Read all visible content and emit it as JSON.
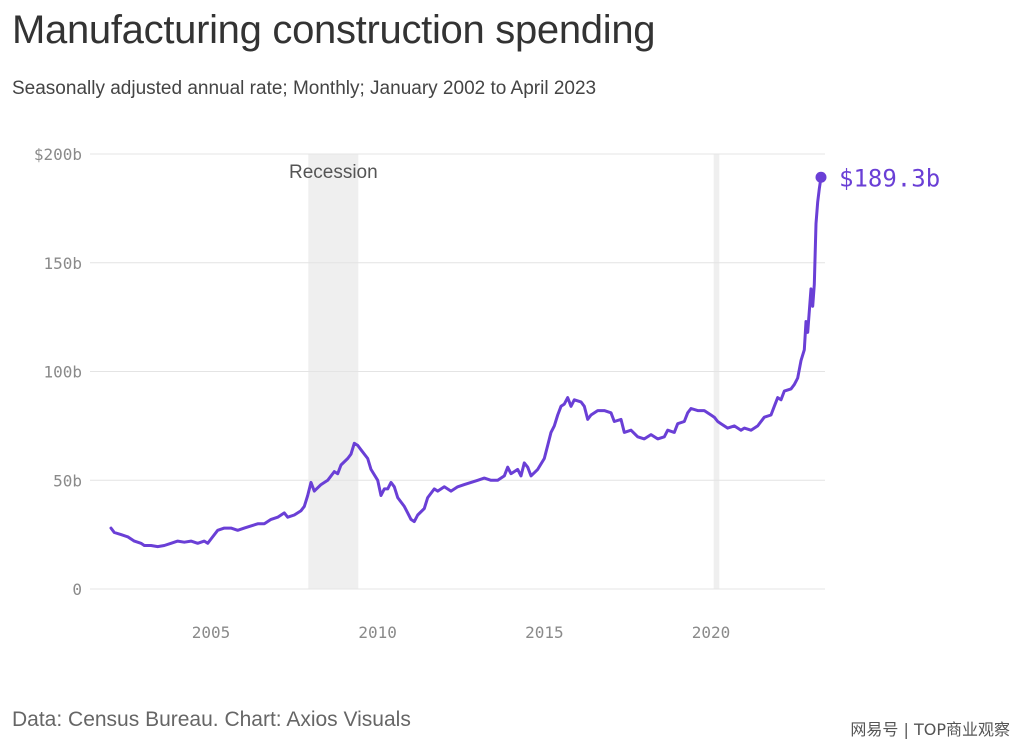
{
  "title": "Manufacturing construction spending",
  "subtitle": "Seasonally adjusted annual rate; Monthly; January 2002 to April 2023",
  "source": "Data: Census Bureau. Chart: Axios Visuals",
  "watermark": "网易号 | TOP商业观察",
  "colors": {
    "series": "#6a3fd6",
    "recession": "#efefef",
    "grid": "#e4e4e4"
  },
  "chart_data": {
    "type": "line",
    "title": "Manufacturing construction spending",
    "subtitle": "Seasonally adjusted annual rate; Monthly; January 2002 to April 2023",
    "xlabel": "",
    "ylabel": "",
    "xlim": [
      2002,
      2023.3
    ],
    "ylim": [
      0,
      200
    ],
    "x_ticks": [
      2005,
      2010,
      2015,
      2020
    ],
    "x_tick_labels": [
      "2005",
      "2010",
      "2015",
      "2020"
    ],
    "y_ticks": [
      0,
      50,
      100,
      150,
      200
    ],
    "y_tick_labels": [
      "0",
      "50b",
      "100b",
      "150b",
      "$200b"
    ],
    "grid": true,
    "recessions": [
      {
        "label": "Recession",
        "start": 2007.92,
        "end": 2009.42
      },
      {
        "label": "",
        "start": 2020.08,
        "end": 2020.25
      }
    ],
    "end_label": "$189.3b",
    "series": [
      {
        "values": [
          [
            2002.0,
            28
          ],
          [
            2002.1,
            26
          ],
          [
            2002.3,
            25
          ],
          [
            2002.5,
            24
          ],
          [
            2002.7,
            22
          ],
          [
            2002.9,
            21
          ],
          [
            2003.0,
            20
          ],
          [
            2003.2,
            20
          ],
          [
            2003.4,
            19.5
          ],
          [
            2003.6,
            20
          ],
          [
            2003.8,
            21
          ],
          [
            2004.0,
            22
          ],
          [
            2004.2,
            21.5
          ],
          [
            2004.4,
            22
          ],
          [
            2004.6,
            21
          ],
          [
            2004.8,
            22
          ],
          [
            2004.9,
            21
          ],
          [
            2005.0,
            23
          ],
          [
            2005.2,
            27
          ],
          [
            2005.4,
            28
          ],
          [
            2005.6,
            28
          ],
          [
            2005.8,
            27
          ],
          [
            2006.0,
            28
          ],
          [
            2006.2,
            29
          ],
          [
            2006.4,
            30
          ],
          [
            2006.6,
            30
          ],
          [
            2006.8,
            32
          ],
          [
            2007.0,
            33
          ],
          [
            2007.2,
            35
          ],
          [
            2007.3,
            33
          ],
          [
            2007.5,
            34
          ],
          [
            2007.7,
            36
          ],
          [
            2007.8,
            38
          ],
          [
            2007.9,
            43
          ],
          [
            2008.0,
            49
          ],
          [
            2008.1,
            45
          ],
          [
            2008.3,
            48
          ],
          [
            2008.5,
            50
          ],
          [
            2008.7,
            54
          ],
          [
            2008.8,
            53
          ],
          [
            2008.9,
            57
          ],
          [
            2009.1,
            60
          ],
          [
            2009.2,
            62
          ],
          [
            2009.3,
            67
          ],
          [
            2009.4,
            66
          ],
          [
            2009.5,
            64
          ],
          [
            2009.7,
            60
          ],
          [
            2009.8,
            55
          ],
          [
            2010.0,
            50
          ],
          [
            2010.1,
            43
          ],
          [
            2010.2,
            46
          ],
          [
            2010.3,
            46
          ],
          [
            2010.4,
            49
          ],
          [
            2010.5,
            47
          ],
          [
            2010.6,
            42
          ],
          [
            2010.8,
            38
          ],
          [
            2010.9,
            35
          ],
          [
            2011.0,
            32
          ],
          [
            2011.1,
            31
          ],
          [
            2011.2,
            34
          ],
          [
            2011.4,
            37
          ],
          [
            2011.5,
            42
          ],
          [
            2011.7,
            46
          ],
          [
            2011.8,
            45
          ],
          [
            2012.0,
            47
          ],
          [
            2012.2,
            45
          ],
          [
            2012.4,
            47
          ],
          [
            2012.6,
            48
          ],
          [
            2012.8,
            49
          ],
          [
            2013.0,
            50
          ],
          [
            2013.2,
            51
          ],
          [
            2013.4,
            50
          ],
          [
            2013.6,
            50
          ],
          [
            2013.8,
            52
          ],
          [
            2013.9,
            56
          ],
          [
            2014.0,
            53
          ],
          [
            2014.2,
            55
          ],
          [
            2014.3,
            52
          ],
          [
            2014.4,
            58
          ],
          [
            2014.5,
            56
          ],
          [
            2014.6,
            52
          ],
          [
            2014.8,
            55
          ],
          [
            2015.0,
            60
          ],
          [
            2015.1,
            66
          ],
          [
            2015.2,
            72
          ],
          [
            2015.3,
            75
          ],
          [
            2015.4,
            80
          ],
          [
            2015.5,
            84
          ],
          [
            2015.6,
            85
          ],
          [
            2015.7,
            88
          ],
          [
            2015.8,
            84
          ],
          [
            2015.9,
            87
          ],
          [
            2016.1,
            86
          ],
          [
            2016.2,
            84
          ],
          [
            2016.3,
            78
          ],
          [
            2016.4,
            80
          ],
          [
            2016.6,
            82
          ],
          [
            2016.8,
            82
          ],
          [
            2017.0,
            81
          ],
          [
            2017.1,
            77
          ],
          [
            2017.3,
            78
          ],
          [
            2017.4,
            72
          ],
          [
            2017.6,
            73
          ],
          [
            2017.8,
            70
          ],
          [
            2018.0,
            69
          ],
          [
            2018.2,
            71
          ],
          [
            2018.4,
            69
          ],
          [
            2018.6,
            70
          ],
          [
            2018.7,
            73
          ],
          [
            2018.9,
            72
          ],
          [
            2019.0,
            76
          ],
          [
            2019.2,
            77
          ],
          [
            2019.3,
            81
          ],
          [
            2019.4,
            83
          ],
          [
            2019.6,
            82
          ],
          [
            2019.8,
            82
          ],
          [
            2020.0,
            80
          ],
          [
            2020.1,
            79
          ],
          [
            2020.2,
            77
          ],
          [
            2020.3,
            76
          ],
          [
            2020.5,
            74
          ],
          [
            2020.7,
            75
          ],
          [
            2020.9,
            73
          ],
          [
            2021.0,
            74
          ],
          [
            2021.2,
            73
          ],
          [
            2021.4,
            75
          ],
          [
            2021.6,
            79
          ],
          [
            2021.8,
            80
          ],
          [
            2021.9,
            84
          ],
          [
            2022.0,
            88
          ],
          [
            2022.1,
            87
          ],
          [
            2022.2,
            91
          ],
          [
            2022.4,
            92
          ],
          [
            2022.5,
            94
          ],
          [
            2022.6,
            97
          ],
          [
            2022.7,
            105
          ],
          [
            2022.8,
            110
          ],
          [
            2022.85,
            123
          ],
          [
            2022.9,
            118
          ],
          [
            2023.0,
            138
          ],
          [
            2023.05,
            130
          ],
          [
            2023.1,
            140
          ],
          [
            2023.15,
            168
          ],
          [
            2023.2,
            178
          ],
          [
            2023.25,
            184
          ],
          [
            2023.3,
            189.3
          ]
        ]
      }
    ]
  }
}
